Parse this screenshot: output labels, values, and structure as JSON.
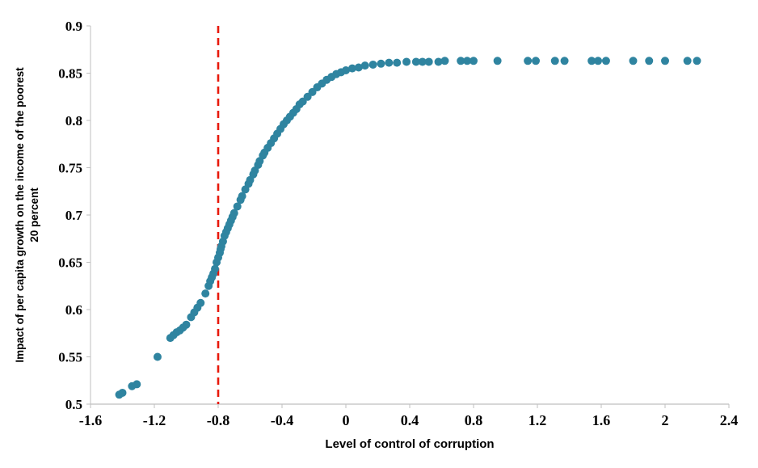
{
  "figure": {
    "background": "#ffffff"
  },
  "chart_data": {
    "type": "scatter",
    "title": "",
    "xlabel": "Level of control of corruption",
    "ylabel": "Impact of per capita growth on the income of the poorest 20 percent",
    "ylabel_lines": [
      "Impact of per capita growth on the income of the poorest",
      "20 percent"
    ],
    "xlim": [
      -1.6,
      2.4
    ],
    "ylim": [
      0.5,
      0.9
    ],
    "x_tick_values": [
      -1.6,
      -1.2,
      -0.8,
      -0.4,
      0,
      0.4,
      0.8,
      1.2,
      1.6,
      2,
      2.4
    ],
    "x_tick_labels": [
      "-1.6",
      "-1.2",
      "-0.8",
      "-0.4",
      "0",
      "0.4",
      "0.8",
      "1.2",
      "1.6",
      "2",
      "2.4"
    ],
    "y_tick_values": [
      0.5,
      0.55,
      0.6,
      0.65,
      0.7,
      0.75,
      0.8,
      0.85,
      0.9
    ],
    "y_tick_labels": [
      "0.5",
      "0.55",
      "0.6",
      "0.65",
      "0.7",
      "0.75",
      "0.8",
      "0.85",
      "0.9"
    ],
    "grid": false,
    "legend": false,
    "point_color": "#2f84a0",
    "axis_color": "#bfbfbf",
    "reference_line": {
      "x": -0.8,
      "color": "#e8190b",
      "style": "dashed"
    },
    "series": [
      {
        "name": "impact-of-growth-on-poorest-20-percent",
        "points": [
          [
            -1.42,
            0.51
          ],
          [
            -1.4,
            0.512
          ],
          [
            -1.34,
            0.519
          ],
          [
            -1.31,
            0.521
          ],
          [
            -1.18,
            0.55
          ],
          [
            -1.1,
            0.57
          ],
          [
            -1.08,
            0.573
          ],
          [
            -1.06,
            0.576
          ],
          [
            -1.04,
            0.578
          ],
          [
            -1.02,
            0.581
          ],
          [
            -1.0,
            0.584
          ],
          [
            -0.97,
            0.592
          ],
          [
            -0.95,
            0.597
          ],
          [
            -0.93,
            0.602
          ],
          [
            -0.91,
            0.607
          ],
          [
            -0.88,
            0.617
          ],
          [
            -0.86,
            0.625
          ],
          [
            -0.85,
            0.63
          ],
          [
            -0.84,
            0.634
          ],
          [
            -0.83,
            0.638
          ],
          [
            -0.82,
            0.643
          ],
          [
            -0.81,
            0.65
          ],
          [
            -0.8,
            0.655
          ],
          [
            -0.79,
            0.66
          ],
          [
            -0.785,
            0.664
          ],
          [
            -0.78,
            0.667
          ],
          [
            -0.77,
            0.672
          ],
          [
            -0.76,
            0.678
          ],
          [
            -0.75,
            0.682
          ],
          [
            -0.74,
            0.686
          ],
          [
            -0.73,
            0.69
          ],
          [
            -0.72,
            0.694
          ],
          [
            -0.71,
            0.698
          ],
          [
            -0.7,
            0.702
          ],
          [
            -0.68,
            0.709
          ],
          [
            -0.66,
            0.716
          ],
          [
            -0.65,
            0.72
          ],
          [
            -0.63,
            0.727
          ],
          [
            -0.61,
            0.733
          ],
          [
            -0.6,
            0.737
          ],
          [
            -0.58,
            0.743
          ],
          [
            -0.57,
            0.747
          ],
          [
            -0.55,
            0.753
          ],
          [
            -0.54,
            0.757
          ],
          [
            -0.52,
            0.763
          ],
          [
            -0.51,
            0.766
          ],
          [
            -0.49,
            0.771
          ],
          [
            -0.47,
            0.776
          ],
          [
            -0.45,
            0.781
          ],
          [
            -0.43,
            0.786
          ],
          [
            -0.41,
            0.791
          ],
          [
            -0.39,
            0.796
          ],
          [
            -0.37,
            0.8
          ],
          [
            -0.35,
            0.804
          ],
          [
            -0.33,
            0.808
          ],
          [
            -0.31,
            0.812
          ],
          [
            -0.29,
            0.817
          ],
          [
            -0.27,
            0.82
          ],
          [
            -0.24,
            0.825
          ],
          [
            -0.21,
            0.83
          ],
          [
            -0.18,
            0.835
          ],
          [
            -0.15,
            0.839
          ],
          [
            -0.12,
            0.843
          ],
          [
            -0.09,
            0.846
          ],
          [
            -0.06,
            0.849
          ],
          [
            -0.03,
            0.851
          ],
          [
            0.0,
            0.853
          ],
          [
            0.04,
            0.855
          ],
          [
            0.08,
            0.856
          ],
          [
            0.12,
            0.858
          ],
          [
            0.17,
            0.859
          ],
          [
            0.22,
            0.86
          ],
          [
            0.27,
            0.861
          ],
          [
            0.32,
            0.861
          ],
          [
            0.38,
            0.862
          ],
          [
            0.44,
            0.862
          ],
          [
            0.48,
            0.862
          ],
          [
            0.52,
            0.862
          ],
          [
            0.58,
            0.862
          ],
          [
            0.62,
            0.863
          ],
          [
            0.72,
            0.863
          ],
          [
            0.76,
            0.863
          ],
          [
            0.8,
            0.863
          ],
          [
            0.95,
            0.863
          ],
          [
            1.14,
            0.863
          ],
          [
            1.19,
            0.863
          ],
          [
            1.31,
            0.863
          ],
          [
            1.37,
            0.863
          ],
          [
            1.54,
            0.863
          ],
          [
            1.58,
            0.863
          ],
          [
            1.63,
            0.863
          ],
          [
            1.8,
            0.863
          ],
          [
            1.9,
            0.863
          ],
          [
            2.0,
            0.863
          ],
          [
            2.14,
            0.863
          ],
          [
            2.2,
            0.863
          ]
        ]
      }
    ]
  }
}
